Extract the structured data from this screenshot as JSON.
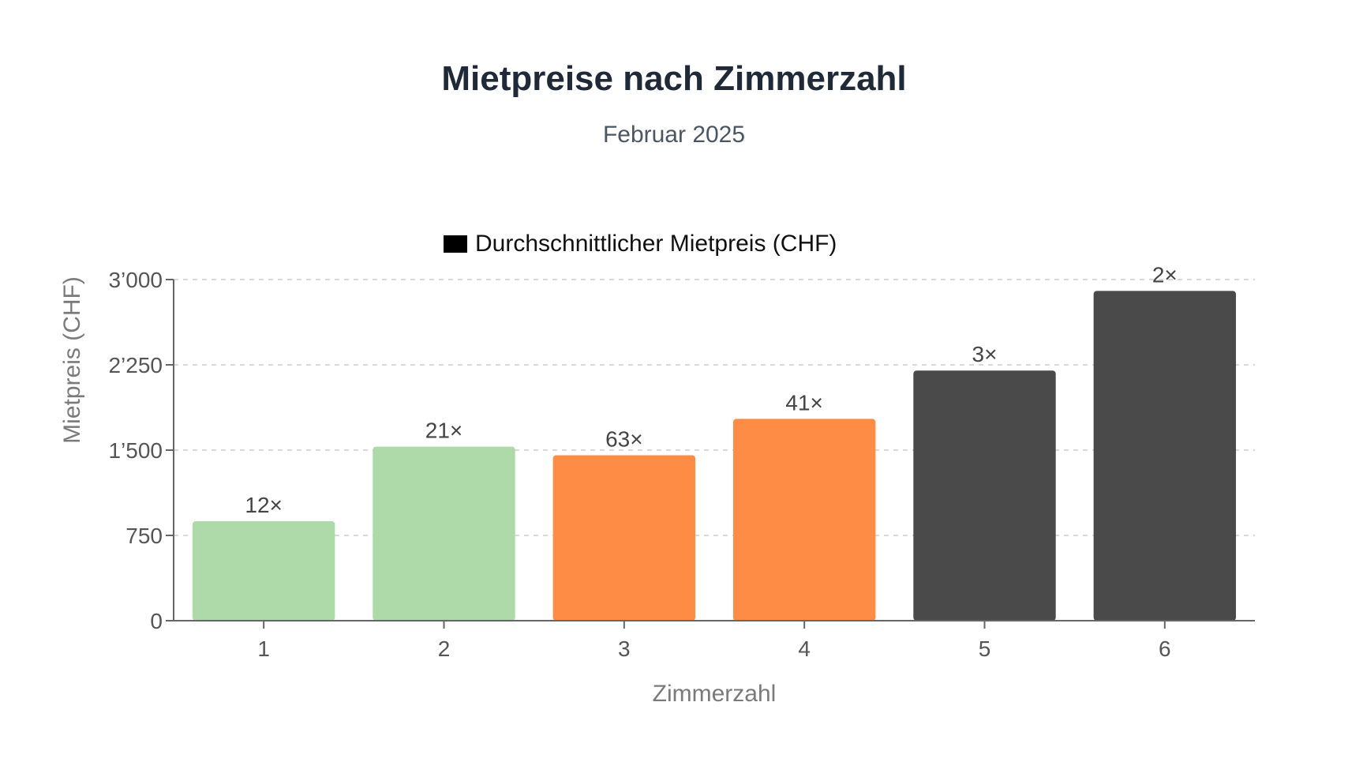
{
  "chart_data": {
    "type": "bar",
    "title": "Mietpreise nach Zimmerzahl",
    "subtitle": "Februar 2025",
    "legend": "Durchschnittlicher Mietpreis (CHF)",
    "xlabel": "Zimmerzahl",
    "ylabel": "Mietpreis (CHF)",
    "ylim": [
      0,
      3000
    ],
    "yticks": [
      0,
      750,
      1500,
      2250,
      3000
    ],
    "ytick_labels": [
      "0",
      "750",
      "1’500",
      "2’250",
      "3’000"
    ],
    "categories": [
      "1",
      "2",
      "3",
      "4",
      "5",
      "6"
    ],
    "values": [
      875,
      1530,
      1455,
      1775,
      2200,
      2900
    ],
    "data_labels": [
      "12×",
      "21×",
      "63×",
      "41×",
      "3×",
      "2×"
    ],
    "colors": [
      "#aed9a8",
      "#aed9a8",
      "#ff8c45",
      "#ff8c45",
      "#4a4a4a",
      "#4a4a4a"
    ],
    "legend_color": "#000000",
    "grid": true
  }
}
